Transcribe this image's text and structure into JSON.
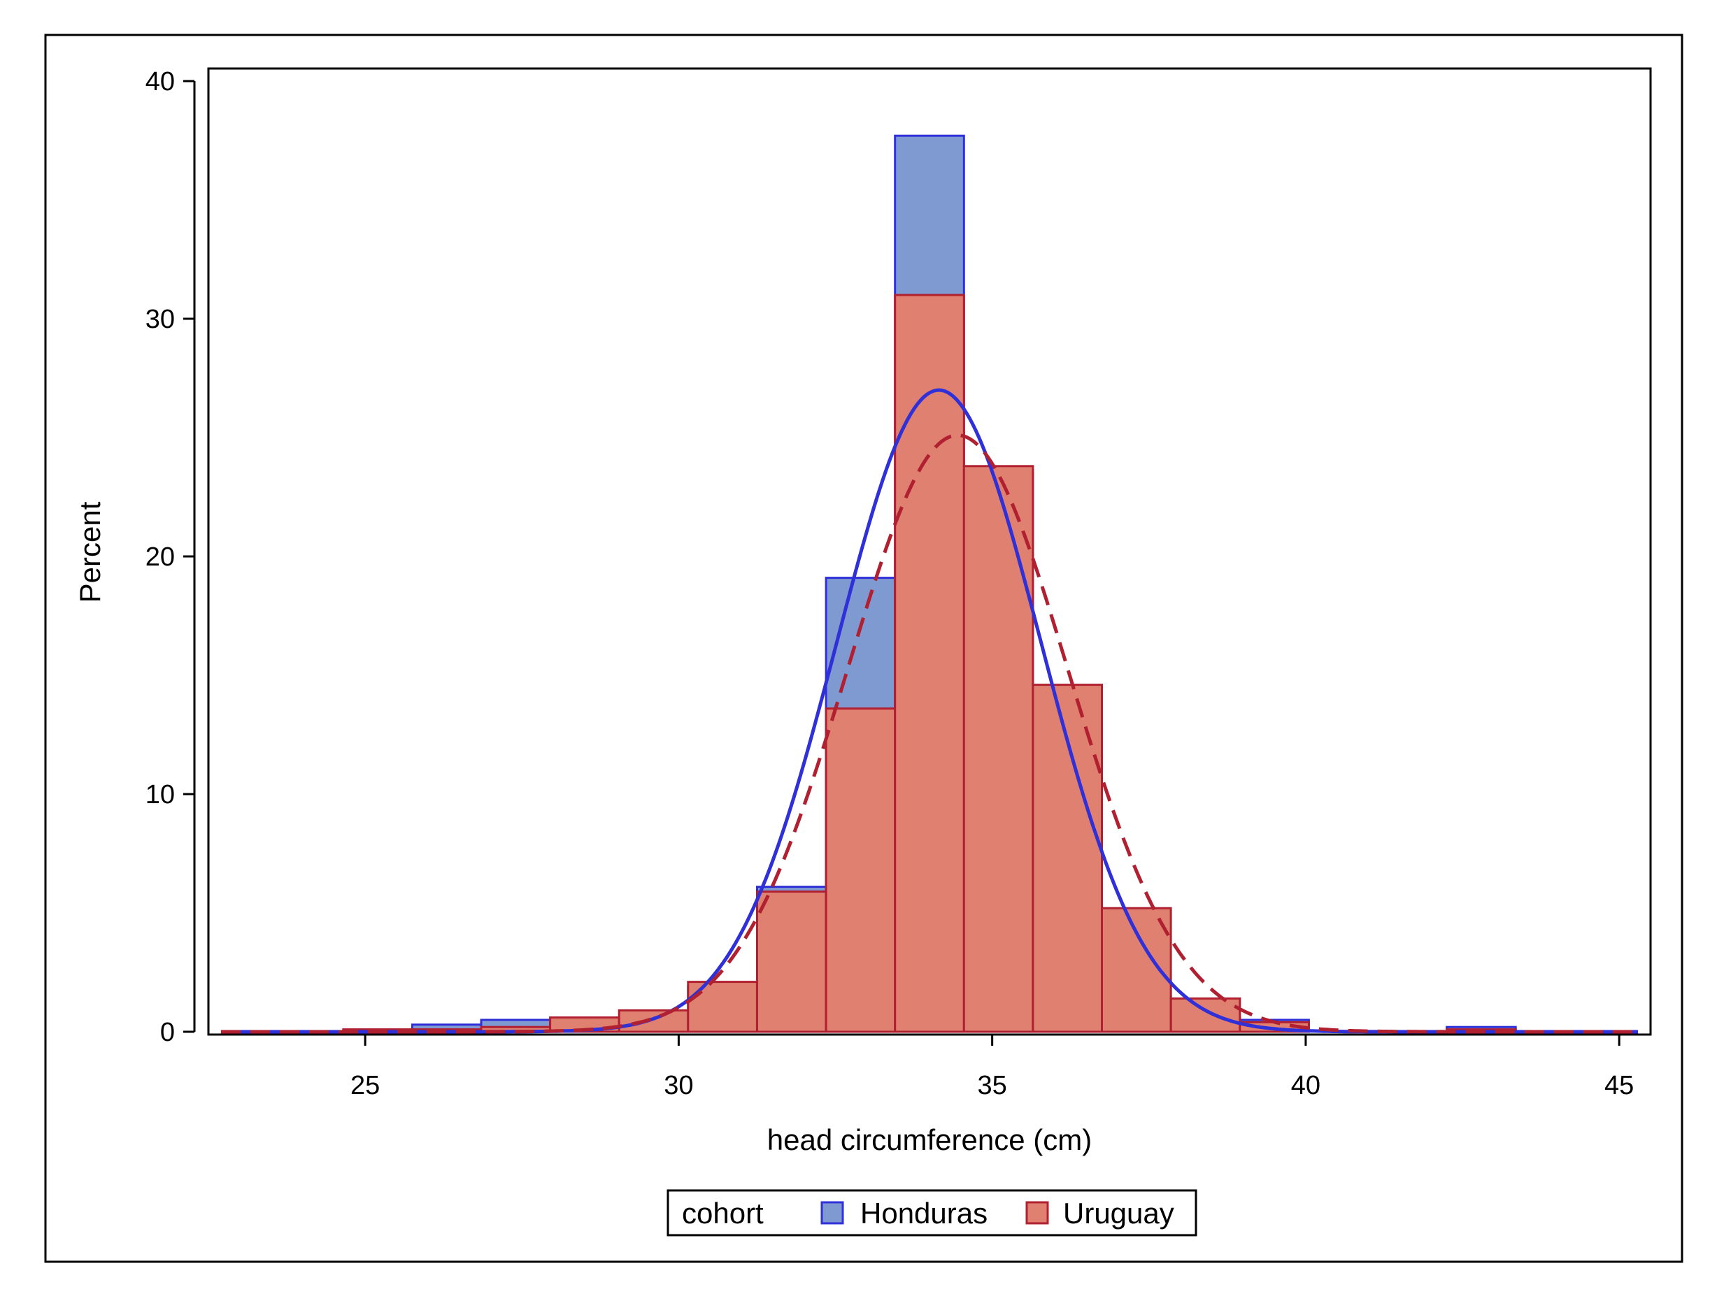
{
  "colors": {
    "honduras_fill": "#7f9ad0",
    "honduras_line": "#3030d8",
    "uruguay_fill": "#e08070",
    "uruguay_line": "#b02030",
    "axis": "#000000"
  },
  "chart_data": {
    "type": "bar",
    "subtype": "overlaid-histogram-with-normal-curves",
    "title": "",
    "xlabel": "head circumference (cm)",
    "ylabel": "Percent",
    "xlim": [
      22.5,
      45.5
    ],
    "ylim": [
      0,
      40
    ],
    "xticks": [
      25,
      30,
      35,
      40,
      45
    ],
    "yticks": [
      0,
      10,
      20,
      30,
      40
    ],
    "grid": false,
    "legend": {
      "title": "cohort",
      "placement": "bottom-center",
      "entries": [
        "Honduras",
        "Uruguay"
      ]
    },
    "bin_width": 1.1,
    "series": [
      {
        "name": "Honduras",
        "color": "#7f9ad0",
        "line_color": "#3030d8",
        "bins": [
          {
            "x0": 25.75,
            "x1": 26.85,
            "value": 0.3
          },
          {
            "x0": 26.85,
            "x1": 27.95,
            "value": 0.5
          },
          {
            "x0": 27.95,
            "x1": 29.05,
            "value": 0.2
          },
          {
            "x0": 29.05,
            "x1": 30.15,
            "value": 0.3
          },
          {
            "x0": 30.15,
            "x1": 31.25,
            "value": 1.9
          },
          {
            "x0": 31.25,
            "x1": 32.35,
            "value": 6.1
          },
          {
            "x0": 32.35,
            "x1": 33.45,
            "value": 19.1
          },
          {
            "x0": 33.45,
            "x1": 34.55,
            "value": 37.7
          },
          {
            "x0": 34.55,
            "x1": 35.65,
            "value": 23.5
          },
          {
            "x0": 35.65,
            "x1": 36.75,
            "value": 8.5
          },
          {
            "x0": 36.75,
            "x1": 37.85,
            "value": 2.1
          },
          {
            "x0": 37.85,
            "x1": 38.95,
            "value": 0.6
          },
          {
            "x0": 38.95,
            "x1": 40.05,
            "value": 0.5
          },
          {
            "x0": 42.25,
            "x1": 43.35,
            "value": 0.2
          }
        ],
        "normal_curve": {
          "mean": 34.15,
          "sd": 1.63,
          "peak": 27.0,
          "style": "solid"
        }
      },
      {
        "name": "Uruguay",
        "color": "#e08070",
        "line_color": "#b02030",
        "bins": [
          {
            "x0": 24.65,
            "x1": 25.75,
            "value": 0.1
          },
          {
            "x0": 25.75,
            "x1": 26.85,
            "value": 0.1
          },
          {
            "x0": 26.85,
            "x1": 27.95,
            "value": 0.2
          },
          {
            "x0": 27.95,
            "x1": 29.05,
            "value": 0.6
          },
          {
            "x0": 29.05,
            "x1": 30.15,
            "value": 0.9
          },
          {
            "x0": 30.15,
            "x1": 31.25,
            "value": 2.1
          },
          {
            "x0": 31.25,
            "x1": 32.35,
            "value": 5.9
          },
          {
            "x0": 32.35,
            "x1": 33.45,
            "value": 13.6
          },
          {
            "x0": 33.45,
            "x1": 34.55,
            "value": 31.0
          },
          {
            "x0": 34.55,
            "x1": 35.65,
            "value": 23.8
          },
          {
            "x0": 35.65,
            "x1": 36.75,
            "value": 14.6
          },
          {
            "x0": 36.75,
            "x1": 37.85,
            "value": 5.2
          },
          {
            "x0": 37.85,
            "x1": 38.95,
            "value": 1.4
          },
          {
            "x0": 38.95,
            "x1": 40.05,
            "value": 0.4
          },
          {
            "x0": 42.25,
            "x1": 43.35,
            "value": 0.1
          }
        ],
        "normal_curve": {
          "mean": 34.45,
          "sd": 1.76,
          "peak": 25.1,
          "style": "dashed"
        }
      }
    ]
  }
}
